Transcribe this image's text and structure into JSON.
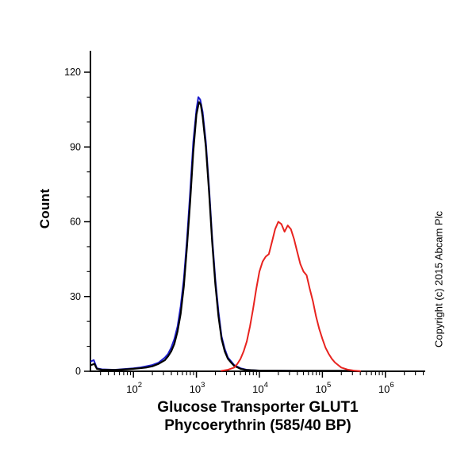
{
  "copyright": "Copyright (c) 2015 Abcam Plc",
  "chart_data": {
    "type": "line",
    "subtype": "flow-cytometry-histogram",
    "title_line1": "Glucose Transporter GLUT1",
    "title_line2": "Phycoerythrin (585/40 BP)",
    "ylabel": "Count",
    "x_scale": "log10",
    "xlim_log": [
      1.33,
      6.62
    ],
    "ylim": [
      0,
      128
    ],
    "y_ticks": [
      0,
      30,
      60,
      90,
      120
    ],
    "y_minor_step": 10,
    "x_tick_base": "10",
    "x_tick_exponents": [
      2,
      3,
      4,
      5,
      6
    ],
    "grid": false,
    "legend": "none",
    "series": [
      {
        "name": "secondary-control-blue",
        "color": "#1c1ccc",
        "points": [
          [
            1.33,
            4
          ],
          [
            1.37,
            4.5
          ],
          [
            1.42,
            1.2
          ],
          [
            1.5,
            0.8
          ],
          [
            1.7,
            0.6
          ],
          [
            1.9,
            1
          ],
          [
            2.0,
            1.2
          ],
          [
            2.1,
            1.5
          ],
          [
            2.2,
            2
          ],
          [
            2.3,
            2.5
          ],
          [
            2.4,
            3.5
          ],
          [
            2.5,
            5.5
          ],
          [
            2.55,
            7
          ],
          [
            2.6,
            9.5
          ],
          [
            2.65,
            13
          ],
          [
            2.7,
            18
          ],
          [
            2.75,
            26
          ],
          [
            2.8,
            37
          ],
          [
            2.85,
            53
          ],
          [
            2.9,
            72
          ],
          [
            2.95,
            92
          ],
          [
            3.0,
            105
          ],
          [
            3.03,
            110
          ],
          [
            3.06,
            109
          ],
          [
            3.1,
            104
          ],
          [
            3.15,
            92
          ],
          [
            3.2,
            74
          ],
          [
            3.25,
            54
          ],
          [
            3.3,
            37
          ],
          [
            3.35,
            24
          ],
          [
            3.4,
            14
          ],
          [
            3.45,
            9
          ],
          [
            3.5,
            5.5
          ],
          [
            3.55,
            4
          ],
          [
            3.6,
            2.5
          ],
          [
            3.7,
            1.2
          ],
          [
            3.8,
            0.6
          ],
          [
            4.0,
            0.3
          ],
          [
            4.5,
            0.2
          ]
        ]
      },
      {
        "name": "unlabelled-control-black",
        "color": "#000000",
        "points": [
          [
            1.33,
            2.5
          ],
          [
            1.38,
            3
          ],
          [
            1.42,
            1
          ],
          [
            1.5,
            0.6
          ],
          [
            1.7,
            0.5
          ],
          [
            1.9,
            0.8
          ],
          [
            2.0,
            1
          ],
          [
            2.1,
            1.2
          ],
          [
            2.2,
            1.5
          ],
          [
            2.3,
            2
          ],
          [
            2.4,
            3
          ],
          [
            2.5,
            4.5
          ],
          [
            2.55,
            6
          ],
          [
            2.6,
            8
          ],
          [
            2.65,
            11
          ],
          [
            2.7,
            16
          ],
          [
            2.75,
            23
          ],
          [
            2.8,
            34
          ],
          [
            2.85,
            50
          ],
          [
            2.9,
            68
          ],
          [
            2.95,
            88
          ],
          [
            3.0,
            103
          ],
          [
            3.04,
            108
          ],
          [
            3.07,
            107
          ],
          [
            3.1,
            102
          ],
          [
            3.15,
            90
          ],
          [
            3.2,
            72
          ],
          [
            3.25,
            52
          ],
          [
            3.3,
            35
          ],
          [
            3.35,
            22
          ],
          [
            3.4,
            13
          ],
          [
            3.45,
            8
          ],
          [
            3.5,
            5
          ],
          [
            3.55,
            3.5
          ],
          [
            3.6,
            2.2
          ],
          [
            3.7,
            1
          ],
          [
            3.8,
            0.5
          ],
          [
            4.0,
            0.3
          ],
          [
            4.5,
            0.2
          ],
          [
            5.0,
            0.2
          ],
          [
            5.5,
            0.2
          ]
        ]
      },
      {
        "name": "glut1-pe-red",
        "color": "#e8231f",
        "points": [
          [
            3.4,
            0.2
          ],
          [
            3.5,
            0.6
          ],
          [
            3.6,
            1.5
          ],
          [
            3.65,
            3
          ],
          [
            3.7,
            5
          ],
          [
            3.75,
            8
          ],
          [
            3.8,
            12
          ],
          [
            3.85,
            18
          ],
          [
            3.9,
            25
          ],
          [
            3.95,
            33
          ],
          [
            4.0,
            40
          ],
          [
            4.05,
            44
          ],
          [
            4.1,
            46
          ],
          [
            4.15,
            47
          ],
          [
            4.2,
            52
          ],
          [
            4.25,
            57
          ],
          [
            4.3,
            60
          ],
          [
            4.35,
            59
          ],
          [
            4.4,
            56
          ],
          [
            4.45,
            58.5
          ],
          [
            4.5,
            57
          ],
          [
            4.55,
            53
          ],
          [
            4.6,
            48
          ],
          [
            4.65,
            43
          ],
          [
            4.7,
            40
          ],
          [
            4.75,
            38.5
          ],
          [
            4.8,
            33
          ],
          [
            4.85,
            28
          ],
          [
            4.9,
            22
          ],
          [
            4.95,
            17
          ],
          [
            5.0,
            13
          ],
          [
            5.05,
            9.5
          ],
          [
            5.1,
            7
          ],
          [
            5.15,
            5
          ],
          [
            5.2,
            3.5
          ],
          [
            5.25,
            2.5
          ],
          [
            5.3,
            1.5
          ],
          [
            5.4,
            0.7
          ],
          [
            5.5,
            0.3
          ],
          [
            5.6,
            0.1
          ]
        ]
      }
    ]
  }
}
